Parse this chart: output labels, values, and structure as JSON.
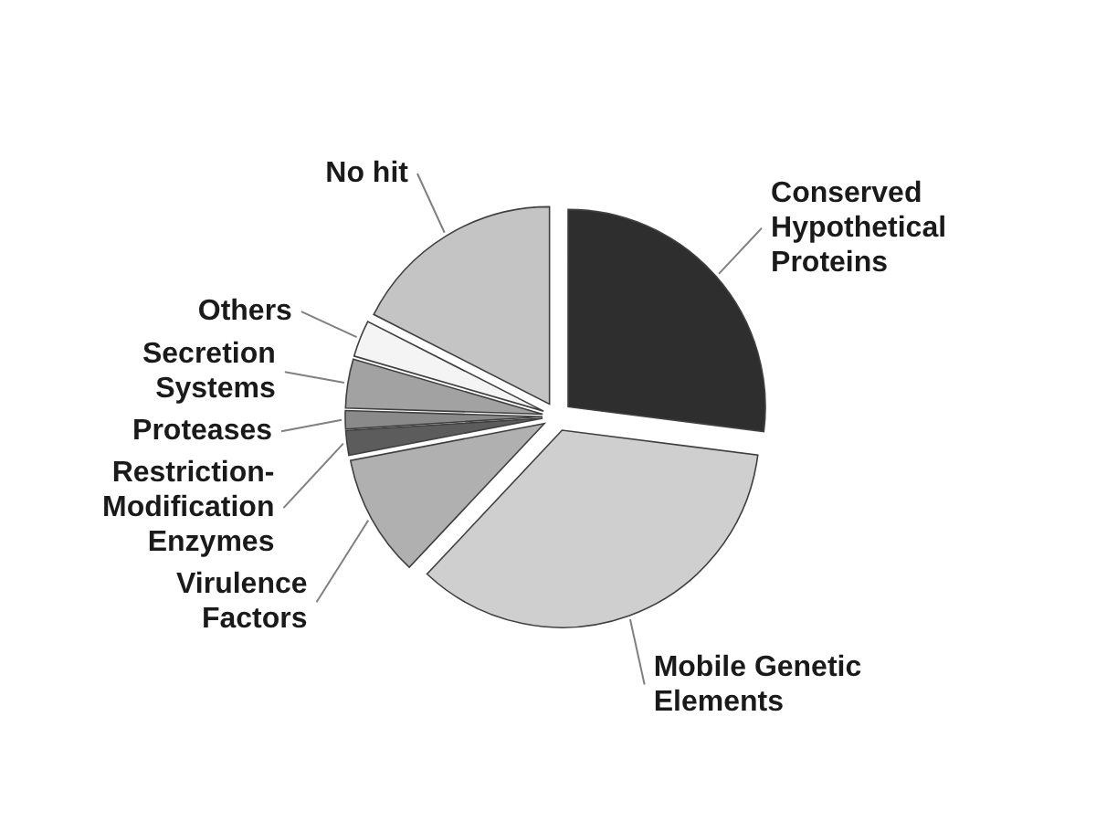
{
  "chart_data": {
    "type": "pie",
    "categories": [
      "Conserved\nHypothetical\nProteins",
      "Mobile Genetic\nElements",
      "Virulence\nFactors",
      "Restriction-\nModification\nEnzymes",
      "Proteases",
      "Secretion\nSystems",
      "Others",
      "No hit"
    ],
    "values": [
      27,
      35,
      10,
      2,
      1.5,
      4,
      3,
      17.5
    ],
    "colors": [
      "#2e2e2e",
      "#cfcfcf",
      "#b0b0b0",
      "#5c5c5c",
      "#8a8a8a",
      "#a2a2a2",
      "#f4f4f4",
      "#c4c4c4"
    ]
  }
}
